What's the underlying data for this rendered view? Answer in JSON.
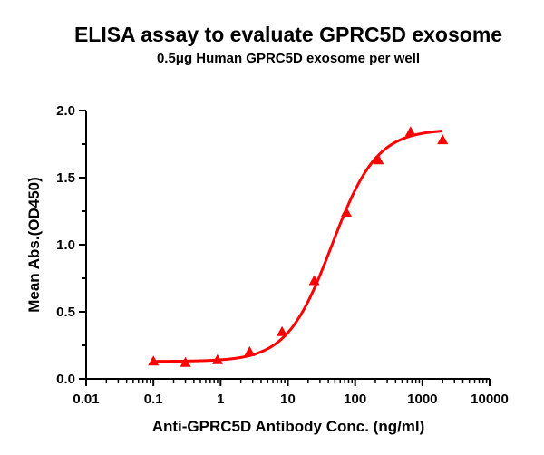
{
  "chart_data": {
    "type": "scatter",
    "title": "ELISA assay to evaluate GPRC5D exosome",
    "subtitle": "0.5μg Human GPRC5D exosome per well",
    "xlabel": "Anti-GPRC5D Antibody Conc. (ng/ml)",
    "ylabel": "Mean Abs.(OD450)",
    "x_scale": "log",
    "xlim": [
      0.01,
      10000
    ],
    "ylim": [
      0,
      2.0
    ],
    "x_ticks": [
      0.01,
      0.1,
      1,
      10,
      100,
      1000,
      10000
    ],
    "x_tick_labels": [
      "0.01",
      "0.1",
      "1",
      "10",
      "100",
      "1000",
      "10000"
    ],
    "y_ticks": [
      0,
      0.5,
      1.0,
      1.5,
      2.0
    ],
    "y_tick_labels": [
      "0.0",
      "0.5",
      "1.0",
      "1.5",
      "2.0"
    ],
    "grid": false,
    "series": [
      {
        "marker": "triangle",
        "color": "#ff0000",
        "x": [
          0.1,
          0.3,
          0.9,
          2.7,
          8.2,
          24.7,
          74,
          222,
          667,
          2000
        ],
        "y": [
          0.13,
          0.12,
          0.14,
          0.2,
          0.35,
          0.73,
          1.24,
          1.63,
          1.84,
          1.78
        ]
      }
    ],
    "fit_curve": {
      "model": "4PL",
      "color": "#ff0000",
      "bottom": 0.13,
      "top": 1.86,
      "ec50": 45,
      "hill": 1.3,
      "x_range": [
        0.1,
        2000
      ]
    }
  }
}
